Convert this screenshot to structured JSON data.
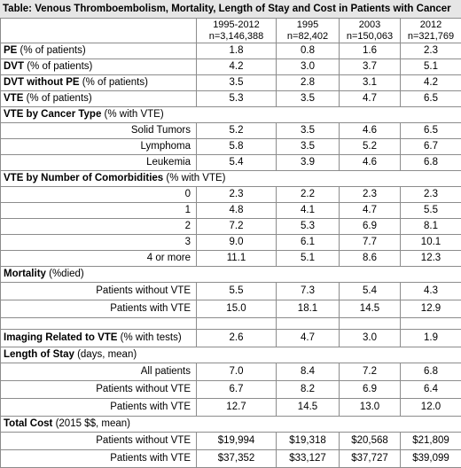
{
  "title": "Table: Venous Thromboembolism, Mortality, Length of Stay and Cost in Patients with Cancer",
  "columns": [
    {
      "year": "1995-2012",
      "n": "n=3,146,388"
    },
    {
      "year": "1995",
      "n": "n=82,402"
    },
    {
      "year": "2003",
      "n": "n=150,063"
    },
    {
      "year": "2012",
      "n": "n=321,769"
    }
  ],
  "rows": {
    "pe": {
      "bold": "PE",
      "rest": " (% of patients)",
      "v": [
        "1.8",
        "0.8",
        "1.6",
        "2.3"
      ]
    },
    "dvt": {
      "bold": "DVT",
      "rest": " (% of patients)",
      "v": [
        "4.2",
        "3.0",
        "3.7",
        "5.1"
      ]
    },
    "dvt_no_pe": {
      "bold": "DVT without PE",
      "rest": " (% of patients)",
      "v": [
        "3.5",
        "2.8",
        "3.1",
        "4.2"
      ]
    },
    "vte": {
      "bold": "VTE",
      "rest": " (% of patients)",
      "v": [
        "5.3",
        "3.5",
        "4.7",
        "6.5"
      ]
    }
  },
  "cancer_type": {
    "bold": "VTE by Cancer Type",
    "rest": " (% with VTE)",
    "rows": [
      {
        "label": "Solid Tumors",
        "v": [
          "5.2",
          "3.5",
          "4.6",
          "6.5"
        ]
      },
      {
        "label": "Lymphoma",
        "v": [
          "5.8",
          "3.5",
          "5.2",
          "6.7"
        ]
      },
      {
        "label": "Leukemia",
        "v": [
          "5.4",
          "3.9",
          "4.6",
          "6.8"
        ]
      }
    ]
  },
  "comorbid": {
    "bold": "VTE by Number of Comorbidities",
    "rest": "  (% with VTE)",
    "rows": [
      {
        "label": "0",
        "v": [
          "2.3",
          "2.2",
          "2.3",
          "2.3"
        ]
      },
      {
        "label": "1",
        "v": [
          "4.8",
          "4.1",
          "4.7",
          "5.5"
        ]
      },
      {
        "label": "2",
        "v": [
          "7.2",
          "5.3",
          "6.9",
          "8.1"
        ]
      },
      {
        "label": "3",
        "v": [
          "9.0",
          "6.1",
          "7.7",
          "10.1"
        ]
      },
      {
        "label": "4 or more",
        "v": [
          "11.1",
          "5.1",
          "8.6",
          "12.3"
        ]
      }
    ]
  },
  "mortality": {
    "bold": "Mortality",
    "rest": " (%died)",
    "rows": [
      {
        "label": "Patients without VTE",
        "v": [
          "5.5",
          "7.3",
          "5.4",
          "4.3"
        ]
      },
      {
        "label": "Patients with VTE",
        "v": [
          "15.0",
          "18.1",
          "14.5",
          "12.9"
        ]
      }
    ]
  },
  "imaging": {
    "bold": "Imaging Related to VTE",
    "rest": " (% with tests)",
    "v": [
      "2.6",
      "4.7",
      "3.0",
      "1.9"
    ]
  },
  "los": {
    "bold": "Length of Stay",
    "rest": " (days, mean)",
    "rows": [
      {
        "label": "All patients",
        "v": [
          "7.0",
          "8.4",
          "7.2",
          "6.8"
        ]
      },
      {
        "label": "Patients without VTE",
        "v": [
          "6.7",
          "8.2",
          "6.9",
          "6.4"
        ]
      },
      {
        "label": "Patients with VTE",
        "v": [
          "12.7",
          "14.5",
          "13.0",
          "12.0"
        ]
      }
    ]
  },
  "cost": {
    "bold": "Total Cost",
    "rest": " (2015 $$, mean)",
    "rows": [
      {
        "label": "Patients without VTE",
        "v": [
          "$19,994",
          "$19,318",
          "$20,568",
          "$21,809"
        ]
      },
      {
        "label": "Patients with VTE",
        "v": [
          "$37,352",
          "$33,127",
          "$37,727",
          "$39,099"
        ]
      }
    ]
  }
}
